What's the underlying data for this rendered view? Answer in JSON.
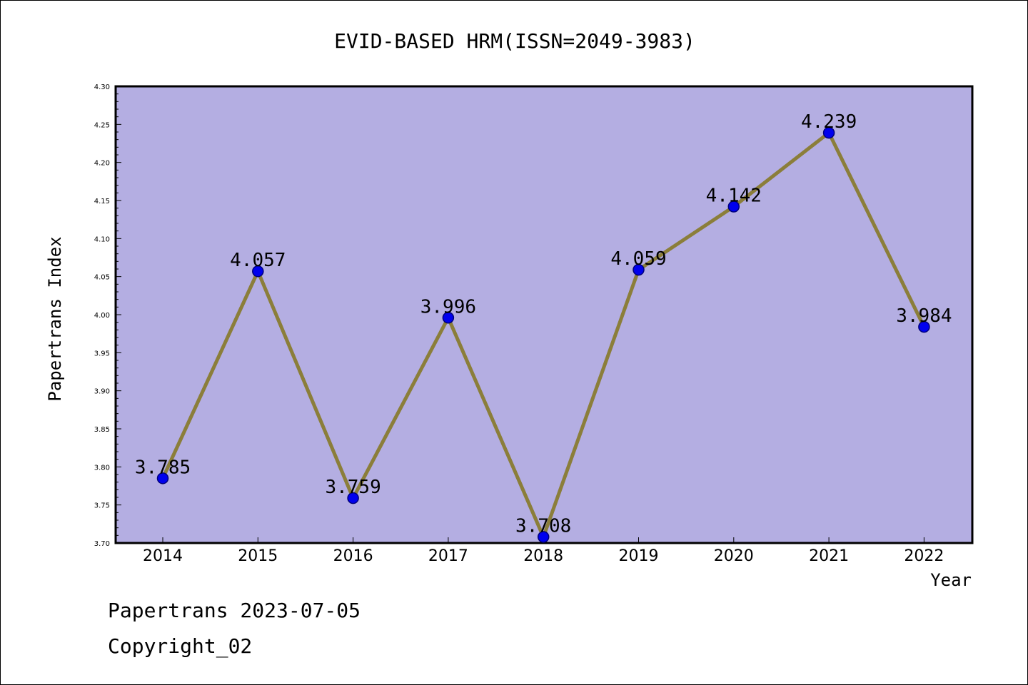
{
  "colors": {
    "plot_background": "#b4aee2",
    "line": "#8b7e3a",
    "marker_fill": "#0000ee",
    "marker_stroke": "#00007a",
    "axis": "#000000"
  },
  "footer": {
    "line1": "Papertrans 2023-07-05",
    "line2": "Copyright_02"
  },
  "chart_data": {
    "type": "line",
    "title": "EVID-BASED HRM(ISSN=2049-3983)",
    "xlabel": "Year",
    "ylabel": "Papertrans Index",
    "categories": [
      "2014",
      "2015",
      "2016",
      "2017",
      "2018",
      "2019",
      "2020",
      "2021",
      "2022"
    ],
    "values": [
      3.785,
      4.057,
      3.759,
      3.996,
      3.708,
      4.059,
      4.142,
      4.239,
      3.984
    ],
    "data_labels": [
      "3.785",
      "4.057",
      "3.759",
      "3.996",
      "3.708",
      "4.059",
      "4.142",
      "4.239",
      "3.984"
    ],
    "ylim": [
      3.7,
      4.3
    ],
    "yticks": [
      "3.70",
      "3.75",
      "3.80",
      "3.85",
      "3.90",
      "3.95",
      "4.00",
      "4.05",
      "4.10",
      "4.15",
      "4.20",
      "4.25",
      "4.30"
    ],
    "grid": false,
    "legend": "none"
  }
}
